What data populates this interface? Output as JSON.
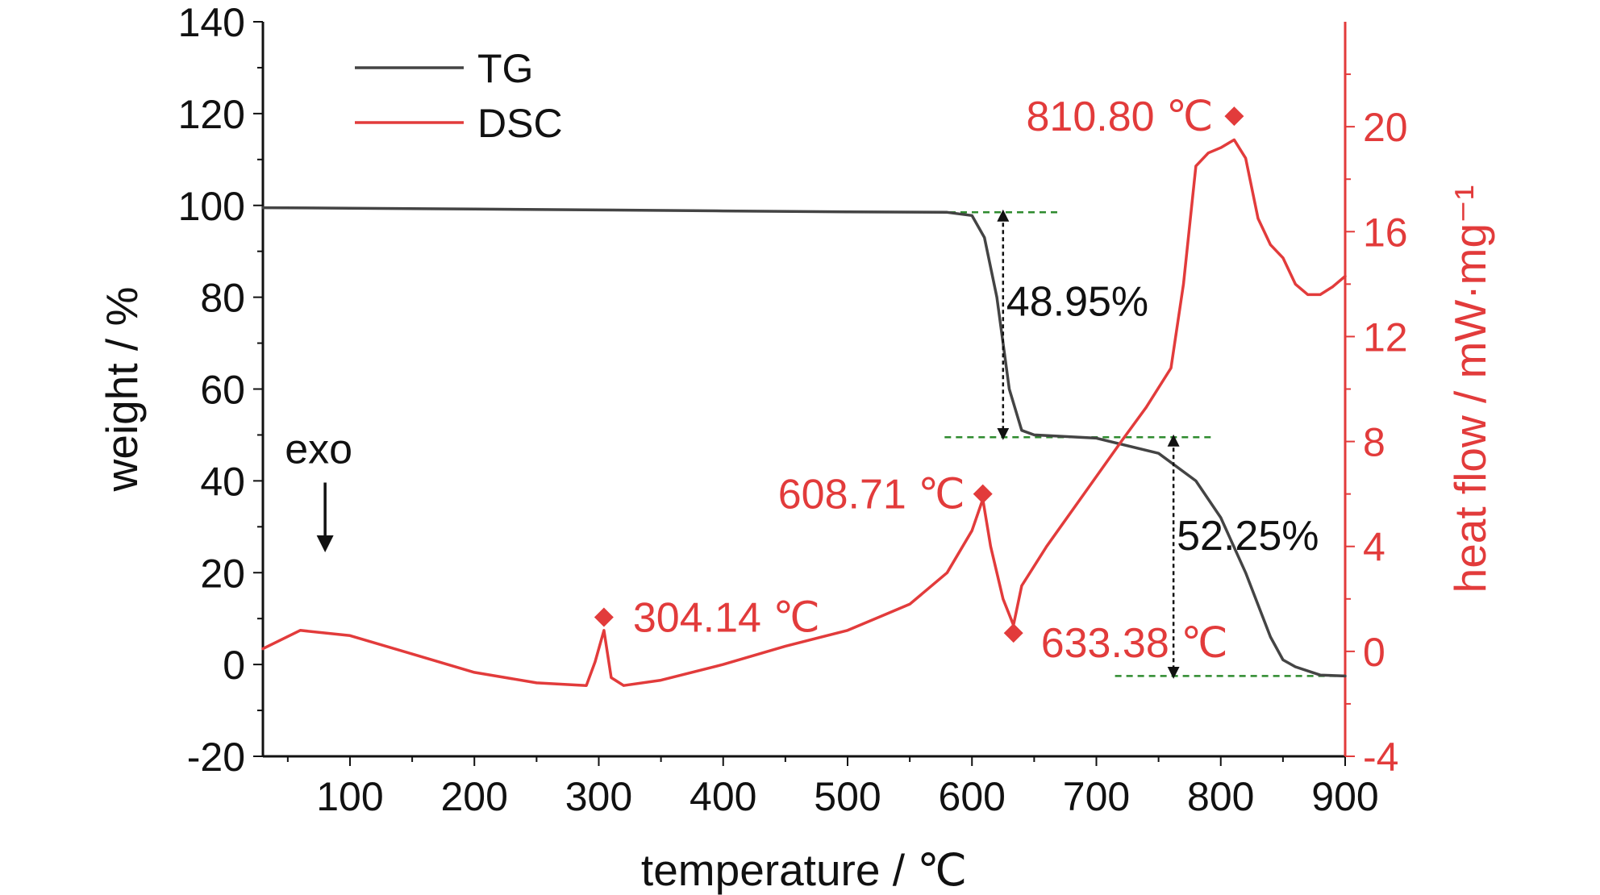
{
  "chart_data": {
    "type": "line",
    "xlabel": "temperature / ℃",
    "ylabel": "weight / %",
    "y2label": "heat flow / mW·mg⁻¹",
    "xlim": [
      30,
      900
    ],
    "ylim": [
      -20,
      140
    ],
    "y2lim": [
      -4,
      24
    ],
    "x_ticks": [
      100,
      200,
      300,
      400,
      500,
      600,
      700,
      800,
      900
    ],
    "y_ticks": [
      -20,
      0,
      20,
      40,
      60,
      80,
      100,
      120,
      140
    ],
    "y2_ticks": [
      -4,
      0,
      4,
      8,
      12,
      16,
      20
    ],
    "grid": false,
    "legend_position": "top-left",
    "colors": {
      "TG": "#444444",
      "DSC": "#e23b3b",
      "guides": "#2e8b2e",
      "annotation": "#e23b3b"
    },
    "series": [
      {
        "name": "TG",
        "axis": "left",
        "x": [
          30,
          100,
          200,
          300,
          400,
          500,
          580,
          600,
          610,
          620,
          630,
          640,
          650,
          700,
          750,
          780,
          800,
          820,
          840,
          850,
          860,
          880,
          900
        ],
        "y": [
          99.5,
          99.4,
          99.2,
          99.0,
          98.8,
          98.6,
          98.5,
          97.8,
          93,
          80,
          60,
          51,
          50,
          49.3,
          46,
          40,
          32,
          20,
          6,
          1,
          -0.5,
          -2.3,
          -2.5
        ]
      },
      {
        "name": "DSC",
        "axis": "right",
        "x": [
          30,
          60,
          100,
          150,
          200,
          250,
          290,
          297,
          304.14,
          310,
          320,
          350,
          400,
          450,
          500,
          550,
          580,
          600,
          608.71,
          615,
          625,
          633.38,
          640,
          660,
          690,
          720,
          740,
          760,
          770,
          780,
          790,
          800,
          810.8,
          820,
          830,
          840,
          850,
          860,
          870,
          880,
          890,
          900
        ],
        "y": [
          0.1,
          0.8,
          0.6,
          -0.1,
          -0.8,
          -1.2,
          -1.3,
          -0.4,
          0.8,
          -1.0,
          -1.3,
          -1.1,
          -0.5,
          0.2,
          0.8,
          1.8,
          3.0,
          4.6,
          5.8,
          4.0,
          2.0,
          1.0,
          2.5,
          4.0,
          6.0,
          8.0,
          9.3,
          10.8,
          14.0,
          18.5,
          19.0,
          19.2,
          19.5,
          18.8,
          16.5,
          15.5,
          15.0,
          14.0,
          13.6,
          13.6,
          13.9,
          14.3
        ]
      }
    ],
    "peak_markers": [
      {
        "label": "304.14 ℃",
        "x": 304.14,
        "y2": 1.3
      },
      {
        "label": "608.71 ℃",
        "x": 608.71,
        "y2": 6.0
      },
      {
        "label": "633.38 ℃",
        "x": 633.38,
        "y2": 0.7
      },
      {
        "label": "810.80 ℃",
        "x": 810.8,
        "y2": 20.4
      }
    ],
    "weight_loss": [
      {
        "label": "48.95%",
        "x": 625,
        "from": 98.5,
        "to": 49.5
      },
      {
        "label": "52.25%",
        "x": 762,
        "from": 49.5,
        "to": -2.5
      }
    ],
    "guide_lines": [
      {
        "x_from": 500,
        "x_to": 670,
        "y": 98.5
      },
      {
        "x_from": 578,
        "x_to": 795,
        "y": 49.5
      },
      {
        "x_from": 715,
        "x_to": 900,
        "y": -2.5
      }
    ],
    "annotations": [
      {
        "text": "exo",
        "x": 80,
        "y": 47
      }
    ]
  }
}
